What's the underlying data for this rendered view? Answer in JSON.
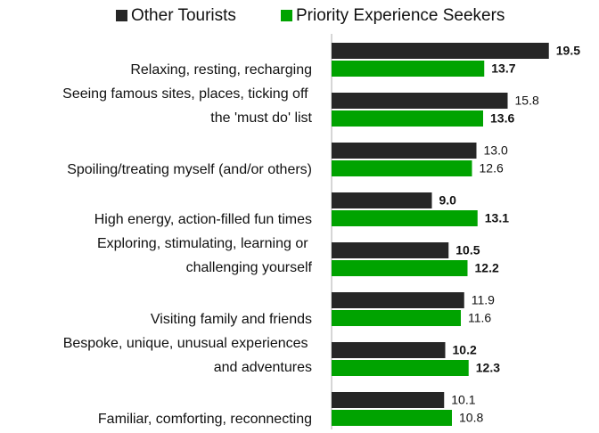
{
  "chart_data": {
    "type": "hbar",
    "categories": [
      "Relaxing, resting, recharging",
      "Seeing famous sites, places, ticking off\nthe 'must do' list",
      "Spoiling/treating myself (and/or others)",
      "High energy, action-filled fun times",
      "Exploring, stimulating, learning or\nchallenging yourself",
      "Visiting family and friends",
      "Bespoke, unique, unusual experiences\nand adventures",
      "Familiar, comforting, reconnecting"
    ],
    "series": [
      {
        "name": "Other Tourists",
        "color": "#262626",
        "values": [
          19.5,
          15.8,
          13.0,
          9.0,
          10.5,
          11.9,
          10.2,
          10.1
        ],
        "value_labels": [
          "19.5",
          "15.8",
          "13.0",
          "9.0",
          "10.5",
          "11.9",
          "10.2",
          "10.1"
        ],
        "label_colors": [
          "#1f6fbf",
          "#1f6fbf",
          "#222222",
          "#e01010",
          "#e01010",
          "#222222",
          "#e01010",
          "#222222"
        ],
        "label_bold": [
          true,
          false,
          false,
          true,
          true,
          false,
          true,
          false
        ]
      },
      {
        "name": "Priority Experience Seekers",
        "color": "#00a300",
        "values": [
          13.7,
          13.6,
          12.6,
          13.1,
          12.2,
          11.6,
          12.3,
          10.8
        ],
        "value_labels": [
          "13.7",
          "13.6",
          "12.6",
          "13.1",
          "12.2",
          "11.6",
          "12.3",
          "10.8"
        ],
        "label_colors": [
          "#e01010",
          "#e01010",
          "#222222",
          "#1f6fbf",
          "#1f6fbf",
          "#222222",
          "#1f6fbf",
          "#222222"
        ],
        "label_bold": [
          true,
          true,
          false,
          true,
          true,
          false,
          true,
          false
        ]
      }
    ],
    "legend": "top"
  }
}
